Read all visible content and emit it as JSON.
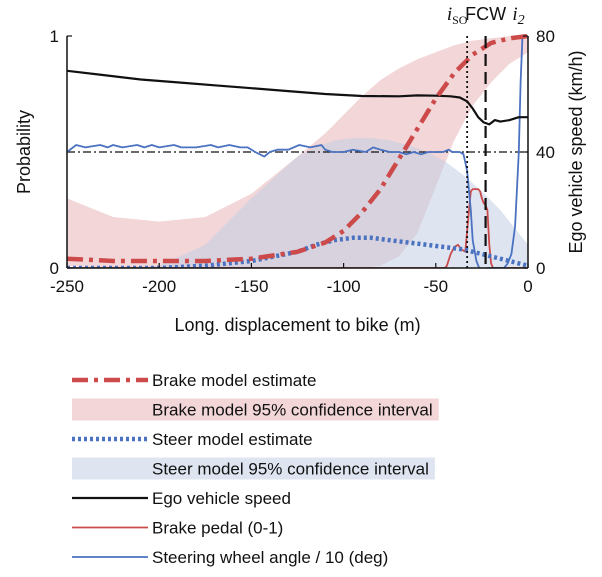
{
  "chart_data": {
    "type": "line",
    "x_axis": {
      "label": "Long. displacement to bike (m)",
      "range": [
        -250,
        0
      ],
      "ticks": [
        -250,
        -200,
        -150,
        -100,
        -50,
        0
      ]
    },
    "y_left": {
      "label": "Probability",
      "range": [
        0,
        1
      ],
      "ticks": [
        0,
        1
      ]
    },
    "y_right": {
      "label": "Ego vehicle speed (km/h)",
      "range": [
        0,
        80
      ],
      "ticks": [
        0,
        40,
        80
      ]
    },
    "reference_line": {
      "axis": "right",
      "y": 40,
      "style": "dash-dot"
    },
    "events": [
      {
        "name": "i",
        "sub": "SO",
        "x": -33,
        "style": "dotted"
      },
      {
        "name": "FCW",
        "x": -23,
        "style": "dashed"
      },
      {
        "name": "i",
        "sub": "2",
        "x": -3,
        "style": "none"
      }
    ],
    "series": [
      {
        "name": "Brake model estimate",
        "axis": "left",
        "color": "#cc4a4a",
        "style": "dash-dot-thick",
        "x": [
          -250,
          -225,
          -200,
          -175,
          -150,
          -125,
          -110,
          -100,
          -90,
          -80,
          -70,
          -60,
          -50,
          -40,
          -30,
          -20,
          -10,
          0
        ],
        "y": [
          0.04,
          0.03,
          0.03,
          0.03,
          0.04,
          0.07,
          0.11,
          0.16,
          0.24,
          0.34,
          0.47,
          0.6,
          0.73,
          0.84,
          0.92,
          0.97,
          0.99,
          1.0
        ]
      },
      {
        "name": "Brake model 95% confidence interval",
        "axis": "left",
        "color": "#e8b4b8",
        "style": "band",
        "x": [
          -250,
          -225,
          -200,
          -175,
          -150,
          -125,
          -110,
          -100,
          -90,
          -80,
          -70,
          -60,
          -50,
          -40,
          -30,
          -20,
          -10,
          0
        ],
        "lower": [
          0.01,
          0.0,
          0.0,
          0.0,
          0.0,
          0.0,
          0.0,
          0.0,
          0.0,
          0.01,
          0.05,
          0.15,
          0.35,
          0.55,
          0.7,
          0.8,
          0.88,
          0.93
        ],
        "upper": [
          0.3,
          0.22,
          0.2,
          0.22,
          0.32,
          0.48,
          0.58,
          0.66,
          0.74,
          0.81,
          0.86,
          0.9,
          0.93,
          0.96,
          0.98,
          0.99,
          1.0,
          1.0
        ]
      },
      {
        "name": "Steer model estimate",
        "axis": "left",
        "color": "#4a72c0",
        "style": "dotted-thick",
        "x": [
          -250,
          -225,
          -200,
          -175,
          -150,
          -125,
          -115,
          -105,
          -95,
          -85,
          -75,
          -65,
          -55,
          -45,
          -35,
          -25,
          -15,
          -5,
          0
        ],
        "y": [
          0.0,
          0.0,
          0.0,
          0.01,
          0.03,
          0.07,
          0.1,
          0.12,
          0.13,
          0.13,
          0.12,
          0.11,
          0.1,
          0.09,
          0.08,
          0.06,
          0.04,
          0.02,
          0.01
        ]
      },
      {
        "name": "Steer model 95% confidence interval",
        "axis": "left",
        "color": "#c3cfe5",
        "style": "band",
        "x": [
          -250,
          -225,
          -200,
          -175,
          -150,
          -125,
          -115,
          -105,
          -95,
          -85,
          -75,
          -65,
          -55,
          -45,
          -35,
          -25,
          -15,
          -5,
          0
        ],
        "lower": [
          0.0,
          0.0,
          0.0,
          0.0,
          0.0,
          0.0,
          0.0,
          0.0,
          0.0,
          0.0,
          0.0,
          0.0,
          0.0,
          0.0,
          0.0,
          0.0,
          0.0,
          0.0,
          0.0
        ],
        "upper": [
          0.0,
          0.0,
          0.01,
          0.1,
          0.3,
          0.48,
          0.52,
          0.55,
          0.56,
          0.56,
          0.55,
          0.53,
          0.5,
          0.46,
          0.4,
          0.33,
          0.25,
          0.15,
          0.1
        ]
      },
      {
        "name": "Ego vehicle speed",
        "axis": "right",
        "color": "#111111",
        "style": "solid",
        "x": [
          -250,
          -230,
          -210,
          -190,
          -170,
          -150,
          -130,
          -110,
          -90,
          -70,
          -60,
          -50,
          -42,
          -37,
          -33,
          -30,
          -27,
          -24,
          -21,
          -18,
          -15,
          -10,
          -5,
          0
        ],
        "y": [
          68,
          66.5,
          65,
          64,
          63,
          62,
          61,
          60,
          59.3,
          59.2,
          59.5,
          59.4,
          59.2,
          58.8,
          57.5,
          55,
          52,
          50.2,
          49.5,
          51,
          50.5,
          51,
          52,
          52
        ]
      },
      {
        "name": "Brake pedal (0-1)",
        "axis": "left",
        "color": "#cc4a4a",
        "style": "solid-thin",
        "x": [
          -250,
          -45,
          -44,
          -42,
          -40,
          -38,
          -36,
          -34,
          -32,
          -31,
          -30,
          -29,
          -28,
          -27,
          -26,
          -25,
          -24,
          -23,
          -22,
          -21,
          -20,
          -19,
          -15,
          0
        ],
        "y": [
          0.0,
          0.0,
          0.01,
          0.06,
          0.09,
          0.1,
          0.08,
          0.07,
          0.25,
          0.33,
          0.34,
          0.34,
          0.34,
          0.34,
          0.33,
          0.3,
          0.28,
          0.27,
          0.25,
          0.1,
          0.02,
          0.0,
          0.0,
          0.0
        ]
      },
      {
        "name": "Steering wheel angle / 10 (deg)",
        "axis": "left",
        "color": "#4a72c0",
        "style": "solid-thin",
        "x": [
          -250,
          -245,
          -240,
          -232,
          -228,
          -225,
          -220,
          -212,
          -208,
          -204,
          -200,
          -192,
          -188,
          -180,
          -172,
          -168,
          -162,
          -156,
          -152,
          -148,
          -143,
          -140,
          -136,
          -130,
          -124,
          -118,
          -112,
          -110,
          -106,
          -100,
          -95,
          -88,
          -84,
          -80,
          -75,
          -70,
          -66,
          -62,
          -58,
          -54,
          -50,
          -46,
          -43,
          -41,
          -39,
          -37,
          -35,
          -33,
          -31,
          -30,
          -28,
          -26,
          -24,
          -23,
          -22,
          -21,
          -19,
          -17,
          -15,
          -13,
          -11,
          -9,
          -7,
          -5,
          -4,
          -3
        ],
        "y": [
          0.5,
          0.53,
          0.52,
          0.53,
          0.52,
          0.53,
          0.52,
          0.53,
          0.52,
          0.53,
          0.52,
          0.53,
          0.52,
          0.52,
          0.53,
          0.52,
          0.53,
          0.52,
          0.52,
          0.5,
          0.48,
          0.5,
          0.51,
          0.51,
          0.53,
          0.52,
          0.53,
          0.51,
          0.5,
          0.5,
          0.51,
          0.5,
          0.52,
          0.51,
          0.5,
          0.5,
          0.49,
          0.5,
          0.49,
          0.5,
          0.5,
          0.5,
          0.51,
          0.5,
          0.5,
          0.5,
          0.49,
          0.42,
          0.25,
          0.12,
          0.03,
          -0.01,
          -0.01,
          -0.01,
          0.0,
          0.0,
          0.0,
          0.0,
          0.0,
          0.0,
          0.02,
          0.06,
          0.18,
          0.5,
          0.8,
          1.0
        ]
      }
    ]
  }
}
